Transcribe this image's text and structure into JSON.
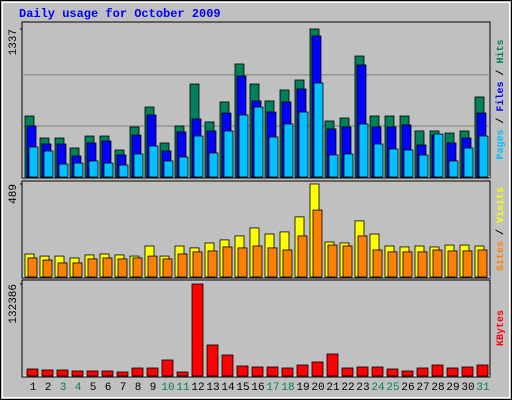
{
  "chart_data": [
    {
      "type": "bar",
      "title": "Daily usage for October 2009",
      "ylim": [
        0,
        1337
      ],
      "yticks": [
        1337
      ],
      "grid": true,
      "series": [
        {
          "name": "Hits",
          "color": "#00805c",
          "values": [
            551,
            352,
            352,
            262,
            370,
            370,
            244,
            452,
            632,
            307,
            461,
            840,
            497,
            678,
            1021,
            840,
            687,
            786,
            876,
            1337,
            506,
            533,
            1093,
            551,
            551,
            551,
            416,
            416,
            397,
            416,
            723
          ]
        },
        {
          "name": "Files",
          "color": "#0000ff",
          "values": [
            461,
            298,
            298,
            190,
            307,
            325,
            199,
            379,
            560,
            235,
            407,
            524,
            416,
            578,
            912,
            687,
            587,
            678,
            795,
            1274,
            434,
            452,
            1012,
            452,
            452,
            470,
            289,
            379,
            307,
            352,
            578
          ]
        },
        {
          "name": "Pages",
          "color": "#00c0ff",
          "values": [
            271,
            235,
            117,
            126,
            145,
            126,
            108,
            208,
            280,
            145,
            181,
            370,
            217,
            416,
            560,
            632,
            361,
            479,
            587,
            849,
            199,
            208,
            479,
            298,
            253,
            244,
            199,
            388,
            145,
            262,
            370
          ]
        }
      ]
    },
    {
      "type": "bar",
      "ylim": [
        0,
        489
      ],
      "yticks": [
        489
      ],
      "grid": false,
      "series": [
        {
          "name": "Visits",
          "color": "#ffff00",
          "values": [
            121,
            110,
            110,
            100,
            116,
            121,
            116,
            110,
            163,
            110,
            163,
            153,
            179,
            195,
            216,
            258,
            226,
            237,
            316,
            489,
            184,
            179,
            295,
            226,
            163,
            158,
            163,
            158,
            168,
            168,
            163
          ]
        },
        {
          "name": "Sites",
          "color": "#ff8000",
          "values": [
            100,
            89,
            74,
            74,
            95,
            100,
            95,
            100,
            110,
            95,
            121,
            132,
            137,
            158,
            153,
            163,
            153,
            142,
            216,
            352,
            168,
            163,
            216,
            142,
            132,
            132,
            132,
            142,
            137,
            137,
            142
          ]
        }
      ]
    },
    {
      "type": "bar",
      "ylim": [
        0,
        132386
      ],
      "yticks": [
        132386
      ],
      "grid": false,
      "categories": [
        "1",
        "2",
        "3",
        "4",
        "5",
        "6",
        "7",
        "8",
        "9",
        "10",
        "11",
        "12",
        "13",
        "14",
        "15",
        "16",
        "17",
        "18",
        "19",
        "20",
        "21",
        "22",
        "23",
        "24",
        "25",
        "26",
        "27",
        "28",
        "29",
        "30",
        "31"
      ],
      "label_colors": [
        "#000000",
        "#000000",
        "#00805c",
        "#00805c",
        "#000000",
        "#000000",
        "#000000",
        "#000000",
        "#000000",
        "#00805c",
        "#00805c",
        "#000000",
        "#000000",
        "#000000",
        "#000000",
        "#000000",
        "#00805c",
        "#00805c",
        "#000000",
        "#000000",
        "#000000",
        "#000000",
        "#000000",
        "#00805c",
        "#00805c",
        "#000000",
        "#000000",
        "#000000",
        "#000000",
        "#000000",
        "#00805c"
      ],
      "series": [
        {
          "name": "KBytes",
          "color": "#ff0000",
          "values": [
            10073,
            8634,
            8634,
            7195,
            7195,
            7195,
            5756,
            11512,
            11512,
            23024,
            5756,
            132386,
            44610,
            30219,
            14390,
            12951,
            12951,
            11512,
            15829,
            20146,
            31658,
            11512,
            12951,
            12951,
            10073,
            7195,
            11512,
            15829,
            11512,
            12951,
            15829
          ]
        }
      ]
    }
  ]
}
